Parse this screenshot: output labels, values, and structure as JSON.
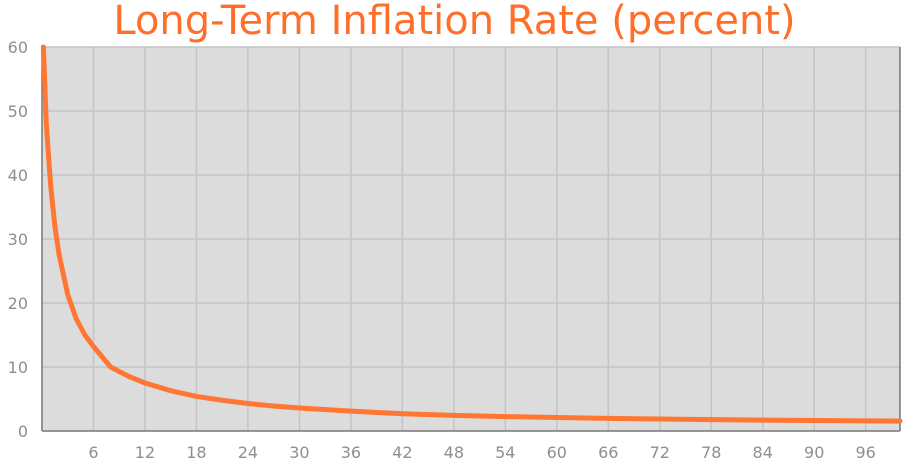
{
  "chart_data": {
    "type": "line",
    "title": "Long-Term Inflation Rate (percent)",
    "xlabel": "",
    "ylabel": "",
    "xlim": [
      0,
      100
    ],
    "ylim": [
      0,
      60
    ],
    "x_ticks": [
      6,
      12,
      18,
      24,
      30,
      36,
      42,
      48,
      54,
      60,
      66,
      72,
      78,
      84,
      90,
      96
    ],
    "y_ticks": [
      0,
      10,
      20,
      30,
      40,
      50,
      60
    ],
    "grid": true,
    "colors": {
      "line": "#ff7733",
      "plot_bg": "#dcdcdc",
      "grid": "#c4c4c4",
      "title": "#ff6f29",
      "axis": "#777777"
    },
    "series": [
      {
        "x": [
          0.16,
          0.5,
          1,
          1.5,
          2,
          3,
          4,
          5,
          6,
          8,
          10,
          12,
          15,
          18,
          21,
          24,
          27,
          30,
          36,
          42,
          48,
          54,
          60,
          66,
          72,
          78,
          84,
          90,
          96,
          100
        ],
        "values": [
          60,
          48,
          38.5,
          32,
          27.5,
          21.3,
          17.5,
          15.0,
          13.2,
          10.0,
          8.6,
          7.5,
          6.3,
          5.4,
          4.8,
          4.3,
          3.9,
          3.6,
          3.1,
          2.7,
          2.45,
          2.25,
          2.1,
          1.97,
          1.87,
          1.78,
          1.7,
          1.64,
          1.58,
          1.55
        ]
      }
    ]
  }
}
